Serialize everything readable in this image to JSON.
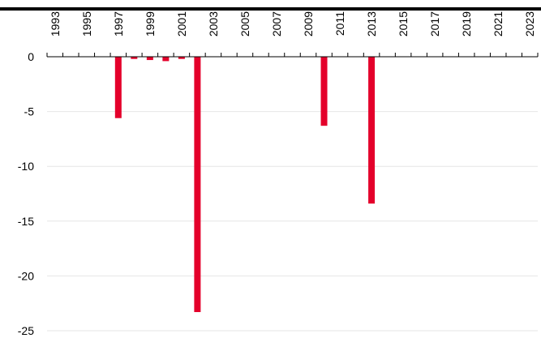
{
  "chart_data": {
    "type": "bar",
    "title": "",
    "xlabel": "",
    "ylabel": "",
    "x_range": [
      1993,
      2023
    ],
    "x_tick_labels": [
      "1993",
      "1995",
      "1997",
      "1999",
      "2001",
      "2003",
      "2005",
      "2007",
      "2009",
      "2011",
      "2013",
      "2015",
      "2017",
      "2019",
      "2021",
      "2023"
    ],
    "ylim": [
      -25,
      0
    ],
    "y_tick_labels": [
      "0",
      "-5",
      "-10",
      "-15",
      "-20",
      "-25"
    ],
    "y_ticks": [
      0,
      -5,
      -10,
      -15,
      -20,
      -25
    ],
    "x_axis_position": "top",
    "grid": "horizontal",
    "legend": "none",
    "bar_color": "#e4002b",
    "categories": [
      1997,
      1998,
      1999,
      2000,
      2001,
      2002,
      2010,
      2013
    ],
    "values": [
      -5.6,
      -0.2,
      -0.3,
      -0.4,
      -0.2,
      -23.3,
      -6.3,
      -13.4
    ]
  }
}
